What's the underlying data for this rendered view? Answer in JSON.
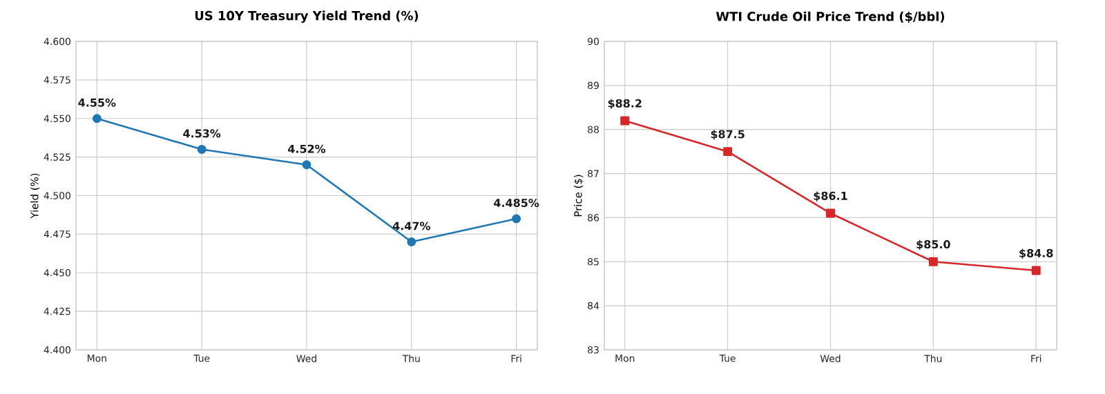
{
  "chart_data": [
    {
      "type": "line",
      "title": "US 10Y Treasury Yield Trend (%)",
      "ylabel": "Yield (%)",
      "categories": [
        "Mon",
        "Tue",
        "Wed",
        "Thu",
        "Fri"
      ],
      "values": [
        4.55,
        4.53,
        4.52,
        4.47,
        4.485
      ],
      "value_labels": [
        "4.55%",
        "4.53%",
        "4.52%",
        "4.47%",
        "4.485%"
      ],
      "color": "#1f77b4",
      "marker": "circle",
      "grid": true,
      "ylim": [
        4.4,
        4.6
      ],
      "yticks": [
        {
          "value": 4.4,
          "label": "4.400"
        },
        {
          "value": 4.425,
          "label": "4.425"
        },
        {
          "value": 4.45,
          "label": "4.450"
        },
        {
          "value": 4.475,
          "label": "4.475"
        },
        {
          "value": 4.5,
          "label": "4.500"
        },
        {
          "value": 4.525,
          "label": "4.525"
        },
        {
          "value": 4.55,
          "label": "4.550"
        },
        {
          "value": 4.575,
          "label": "4.575"
        },
        {
          "value": 4.6,
          "label": "4.600"
        }
      ]
    },
    {
      "type": "line",
      "title": "WTI Crude Oil Price Trend ($/bbl)",
      "ylabel": "Price ($)",
      "categories": [
        "Mon",
        "Tue",
        "Wed",
        "Thu",
        "Fri"
      ],
      "values": [
        88.2,
        87.5,
        86.1,
        85.0,
        84.8
      ],
      "value_labels": [
        "$88.2",
        "$87.5",
        "$86.1",
        "$85.0",
        "$84.8"
      ],
      "color": "#d62728",
      "marker": "square",
      "grid": true,
      "ylim": [
        83,
        90
      ],
      "yticks": [
        83,
        84,
        85,
        86,
        87,
        88,
        89,
        90
      ]
    }
  ]
}
